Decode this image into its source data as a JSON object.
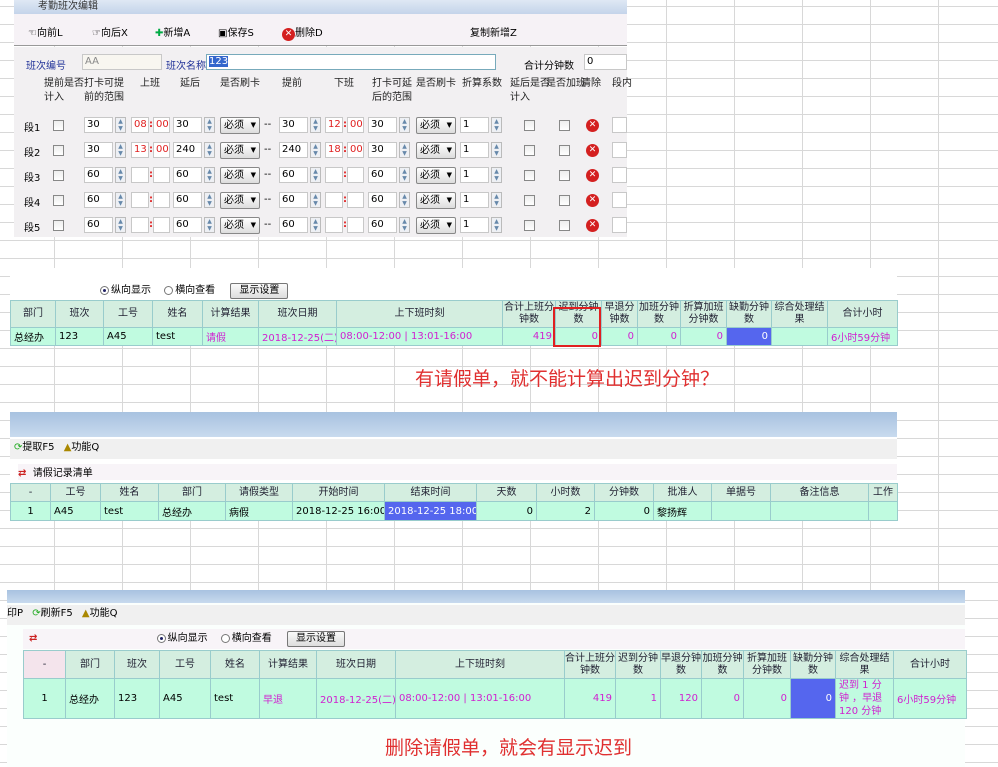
{
  "editor": {
    "title": "考勤班次编辑",
    "toolbar": {
      "prev": "向前L",
      "next": "向后X",
      "add": "新增A",
      "save": "保存S",
      "delete": "删除D",
      "copy_add": "复制新增Z"
    },
    "code_label": "班次编号",
    "code_value": "AA",
    "name_label": "班次名称",
    "name_value": "123",
    "total_label": "合计分钟数",
    "total_value": "0",
    "headers": [
      "提前是否计入",
      "打卡可提前的范围",
      "上班",
      "延后",
      "是否刷卡",
      "提前",
      "下班",
      "打卡可延后的范围",
      "是否刷卡",
      "折算系数",
      "延后是否计入",
      "是否加班",
      "清除",
      "段内"
    ],
    "segments": [
      {
        "label": "段1",
        "early_range": "30",
        "start_h": "08",
        "start_m": "00",
        "late": "30",
        "swipe1": "必须",
        "early": "30",
        "end_h": "12",
        "end_m": "00",
        "late_range": "30",
        "swipe2": "必须",
        "factor": "1"
      },
      {
        "label": "段2",
        "early_range": "30",
        "start_h": "13",
        "start_m": "00",
        "late": "240",
        "swipe1": "必须",
        "early": "240",
        "end_h": "18",
        "end_m": "00",
        "late_range": "30",
        "swipe2": "必须",
        "factor": "1"
      },
      {
        "label": "段3",
        "early_range": "60",
        "start_h": "",
        "start_m": "",
        "late": "60",
        "swipe1": "必须",
        "early": "60",
        "end_h": "",
        "end_m": "",
        "late_range": "60",
        "swipe2": "必须",
        "factor": "1"
      },
      {
        "label": "段4",
        "early_range": "60",
        "start_h": "",
        "start_m": "",
        "late": "60",
        "swipe1": "必须",
        "early": "60",
        "end_h": "",
        "end_m": "",
        "late_range": "60",
        "swipe2": "必须",
        "factor": "1"
      },
      {
        "label": "段5",
        "early_range": "60",
        "start_h": "",
        "start_m": "",
        "late": "60",
        "swipe1": "必须",
        "early": "60",
        "end_h": "",
        "end_m": "",
        "late_range": "60",
        "swipe2": "必须",
        "factor": "1"
      }
    ],
    "dash": "--",
    "colon": ":"
  },
  "result1": {
    "radio_vertical": "纵向显示",
    "radio_horizontal": "横向查看",
    "display_settings": "显示设置",
    "columns": [
      "部门",
      "班次",
      "工号",
      "姓名",
      "计算结果",
      "班次日期",
      "上下班时刻",
      "合计上班分钟数",
      "迟到分钟数",
      "早退分钟数",
      "加班分钟数",
      "折算加班分钟数",
      "缺勤分钟数",
      "综合处理结果",
      "合计小时"
    ],
    "row": [
      "总经办",
      "123",
      "A45",
      "test",
      "请假",
      "2018-12-25(二)",
      "08:00-12:00 | 13:01-16:00",
      "419",
      "0",
      "0",
      "0",
      "0",
      "0",
      "",
      "6小时59分钟"
    ],
    "note": "有请假单，就不能计算出迟到分钟？"
  },
  "leave": {
    "toolbar": {
      "fetch": "提取F5",
      "function": "功能Q"
    },
    "title": "请假记录清单",
    "columns": [
      "-",
      "工号",
      "姓名",
      "部门",
      "请假类型",
      "开始时间",
      "结束时间",
      "天数",
      "小时数",
      "分钟数",
      "批准人",
      "单据号",
      "备注信息",
      "工作"
    ],
    "row": [
      "1",
      "A45",
      "test",
      "总经办",
      "病假",
      "2018-12-25 16:00",
      "2018-12-25 18:00",
      "0",
      "2",
      "0",
      "黎扬辉",
      "",
      "",
      ""
    ]
  },
  "result2": {
    "toolbar": {
      "print": "印P",
      "refresh": "刷新F5",
      "function": "功能Q"
    },
    "radio_vertical": "纵向显示",
    "radio_horizontal": "横向查看",
    "display_settings": "显示设置",
    "columns": [
      "-",
      "部门",
      "班次",
      "工号",
      "姓名",
      "计算结果",
      "班次日期",
      "上下班时刻",
      "合计上班分钟数",
      "迟到分钟数",
      "早退分钟数",
      "加班分钟数",
      "折算加班分钟数",
      "缺勤分钟数",
      "综合处理结果",
      "合计小时"
    ],
    "row": [
      "1",
      "总经办",
      "123",
      "A45",
      "test",
      "早退",
      "2018-12-25(二)",
      "08:00-12:00 | 13:01-16:00",
      "419",
      "1",
      "120",
      "0",
      "0",
      "0",
      "迟到 1 分钟 ，早退 120 分钟",
      "6小时59分钟"
    ],
    "note": "删除请假单，就会有显示迟到"
  },
  "colors": {
    "row_bg": "#c0fbe0",
    "header_bg": "#d4eee0",
    "selected_cell": "#5566ee",
    "note_red": "#e03030",
    "highlight_box": "#e02020"
  }
}
